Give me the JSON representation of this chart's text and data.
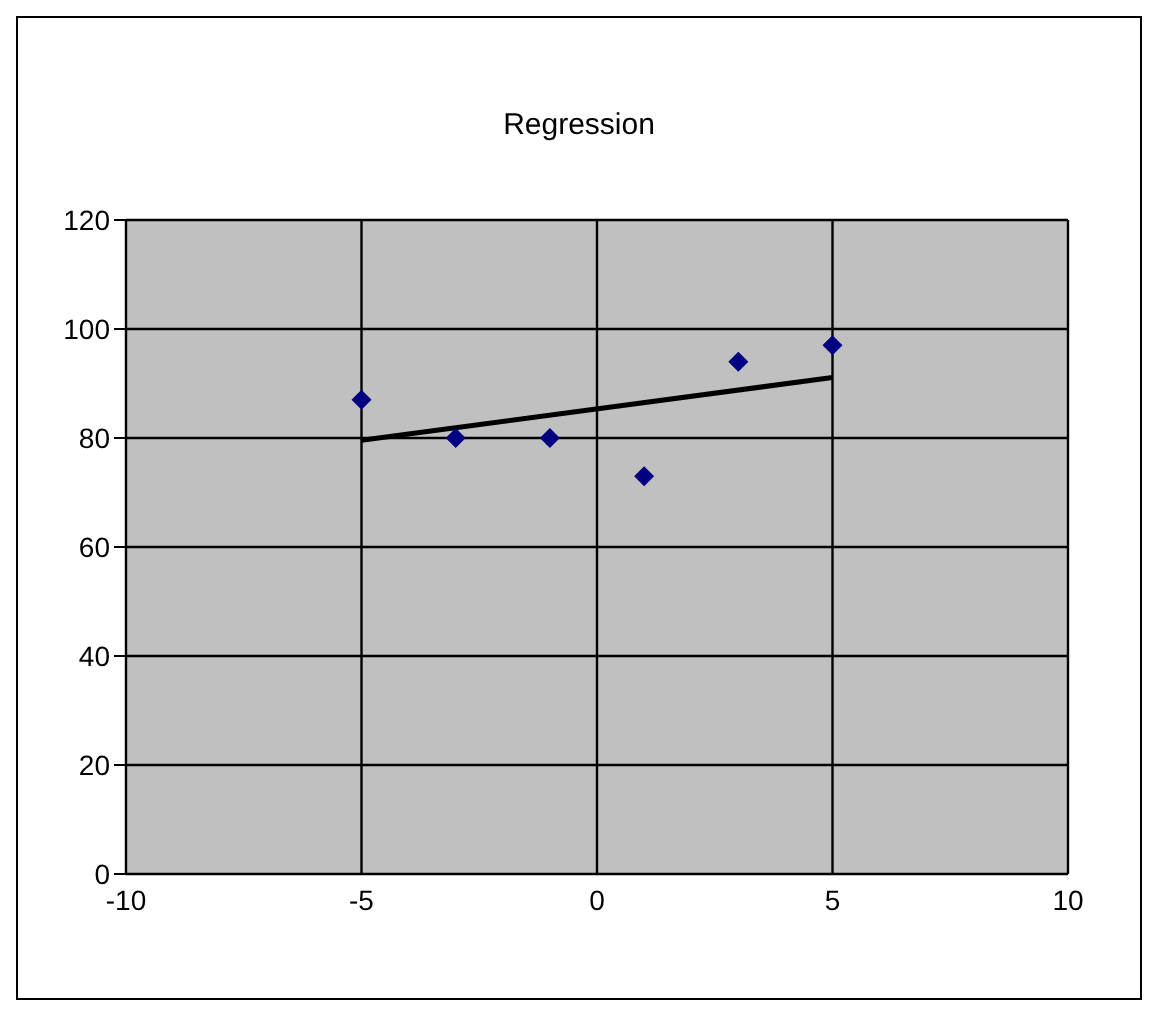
{
  "chart_data": {
    "type": "scatter",
    "title": "Regression",
    "x": [
      -5,
      -3,
      -1,
      1,
      3,
      5
    ],
    "series": [
      {
        "type": "scatter",
        "color": "#000080",
        "marker": "diamond",
        "values": [
          87,
          80,
          80,
          73,
          94,
          97
        ]
      },
      {
        "type": "line",
        "color": "#000000",
        "marker": "none",
        "x": [
          -5,
          5
        ],
        "values": [
          79.6,
          91.1
        ]
      }
    ],
    "xlim": [
      -10,
      10
    ],
    "xticks": [
      -10,
      -5,
      0,
      5,
      10
    ],
    "ylim": [
      0,
      120
    ],
    "yticks": [
      0,
      20,
      40,
      60,
      80,
      100,
      120
    ],
    "grid": true
  }
}
